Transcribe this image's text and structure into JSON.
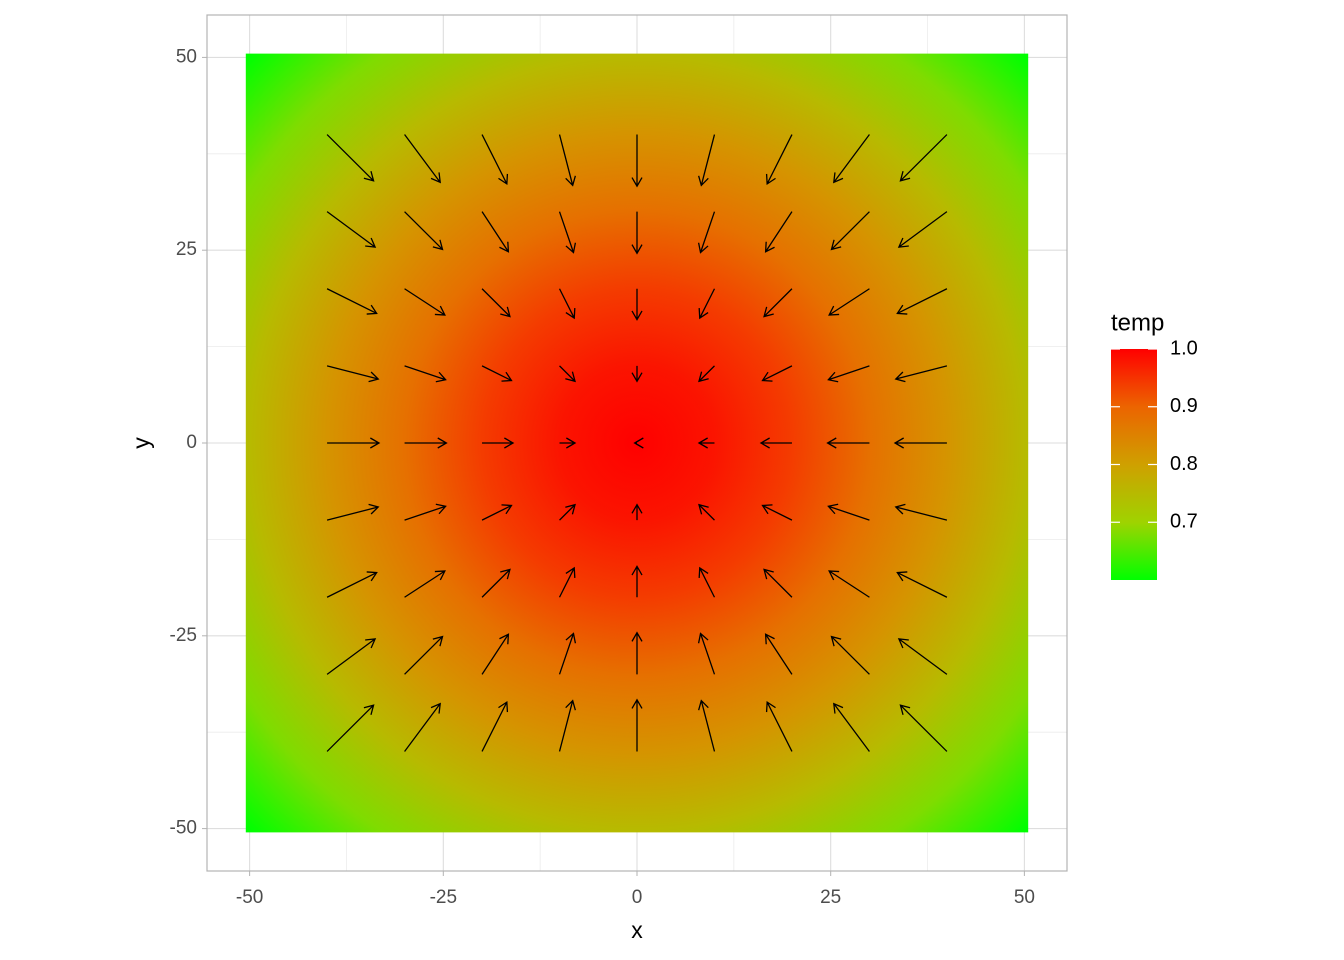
{
  "chart_data": {
    "type": "vector-field",
    "x_label": "x",
    "y_label": "y",
    "legend_title": "temp",
    "xlim": [
      -55.5,
      55.5
    ],
    "ylim": [
      -55.5,
      55.5
    ],
    "xticks": [
      -50,
      -25,
      0,
      25,
      50
    ],
    "yticks": [
      -50,
      -25,
      0,
      25,
      50
    ],
    "grid": true,
    "fill": {
      "r": [
        0,
        10,
        20,
        30,
        40,
        50,
        60,
        70.7
      ],
      "values": [
        1.0,
        0.98,
        0.94,
        0.88,
        0.82,
        0.75,
        0.68,
        0.6
      ]
    },
    "fill_lim": [
      0.6,
      1.0
    ],
    "fill_ticks": [
      0.7,
      0.8,
      0.9,
      {
        "value": 1,
        "label": "1.0"
      }
    ],
    "palette": [
      "#00ff00",
      "#9fd300",
      "#cfa000",
      "#ec6400",
      "#ff0000"
    ],
    "arrow_color": "#000000",
    "arrows": {
      "x": [
        -40,
        -30,
        -20,
        -10,
        0,
        10,
        20,
        30,
        40,
        -40,
        -30,
        -20,
        -10,
        0,
        10,
        20,
        30,
        40,
        -40,
        -30,
        -20,
        -10,
        0,
        10,
        20,
        30,
        40,
        -40,
        -30,
        -20,
        -10,
        0,
        10,
        20,
        30,
        40,
        -40,
        -30,
        -20,
        -10,
        0,
        10,
        20,
        30,
        40,
        -40,
        -30,
        -20,
        -10,
        0,
        10,
        20,
        30,
        40,
        -40,
        -30,
        -20,
        -10,
        0,
        10,
        20,
        30,
        40,
        -40,
        -30,
        -20,
        -10,
        0,
        10,
        20,
        30,
        40,
        -40,
        -30,
        -20,
        -10,
        0,
        10,
        20,
        30,
        40
      ],
      "y": [
        40,
        40,
        40,
        40,
        40,
        40,
        40,
        40,
        40,
        30,
        30,
        30,
        30,
        30,
        30,
        30,
        30,
        30,
        20,
        20,
        20,
        20,
        20,
        20,
        20,
        20,
        20,
        10,
        10,
        10,
        10,
        10,
        10,
        10,
        10,
        10,
        0,
        0,
        0,
        0,
        0,
        0,
        0,
        0,
        0,
        -10,
        -10,
        -10,
        -10,
        -10,
        -10,
        -10,
        -10,
        -10,
        -20,
        -20,
        -20,
        -20,
        -20,
        -20,
        -20,
        -20,
        -20,
        -30,
        -30,
        -30,
        -30,
        -30,
        -30,
        -30,
        -30,
        -30,
        -40,
        -40,
        -40,
        -40,
        -40,
        -40,
        -40,
        -40,
        -40
      ],
      "dx": [
        6,
        4.6,
        3.2,
        1.7,
        0,
        -1.7,
        -3.2,
        -4.6,
        -6,
        6.2,
        4.9,
        3.4,
        1.8,
        0,
        -1.8,
        -3.4,
        -4.9,
        -6.2,
        6.4,
        5.2,
        3.6,
        1.9,
        0,
        -1.9,
        -3.6,
        -5.2,
        -6.4,
        6.6,
        5.3,
        3.8,
        2,
        0,
        -2,
        -3.8,
        -5.3,
        -6.6,
        6.7,
        5.4,
        4,
        2,
        -0.3,
        -2,
        -4,
        -5.4,
        -6.7,
        6.6,
        5.3,
        3.8,
        2,
        0,
        -2,
        -3.8,
        -5.3,
        -6.6,
        6.4,
        5.2,
        3.6,
        1.9,
        0,
        -1.9,
        -3.6,
        -5.2,
        -6.4,
        6.2,
        4.9,
        3.4,
        1.8,
        0,
        -1.8,
        -3.4,
        -4.9,
        -6.2,
        6,
        4.6,
        3.2,
        1.7,
        0,
        -1.7,
        -3.2,
        -4.6,
        -6
      ],
      "dy": [
        -6,
        -6.2,
        -6.4,
        -6.6,
        -6.7,
        -6.6,
        -6.4,
        -6.2,
        -6,
        -4.6,
        -4.9,
        -5.2,
        -5.3,
        -5.4,
        -5.3,
        -5.2,
        -4.9,
        -4.6,
        -3.2,
        -3.4,
        -3.6,
        -3.8,
        -4,
        -3.8,
        -3.6,
        -3.4,
        -3.2,
        -1.7,
        -1.8,
        -1.9,
        -2,
        -2,
        -2,
        -1.9,
        -1.8,
        -1.7,
        0,
        0,
        0,
        0,
        0,
        0,
        0,
        0,
        0,
        1.7,
        1.8,
        1.9,
        2,
        2,
        2,
        1.9,
        1.8,
        1.7,
        3.2,
        3.4,
        3.6,
        3.8,
        4,
        3.8,
        3.6,
        3.4,
        3.2,
        4.6,
        4.9,
        5.2,
        5.3,
        5.4,
        5.3,
        5.2,
        4.9,
        4.6,
        6,
        6.2,
        6.4,
        6.6,
        6.7,
        6.6,
        6.4,
        6.2,
        6
      ]
    }
  }
}
